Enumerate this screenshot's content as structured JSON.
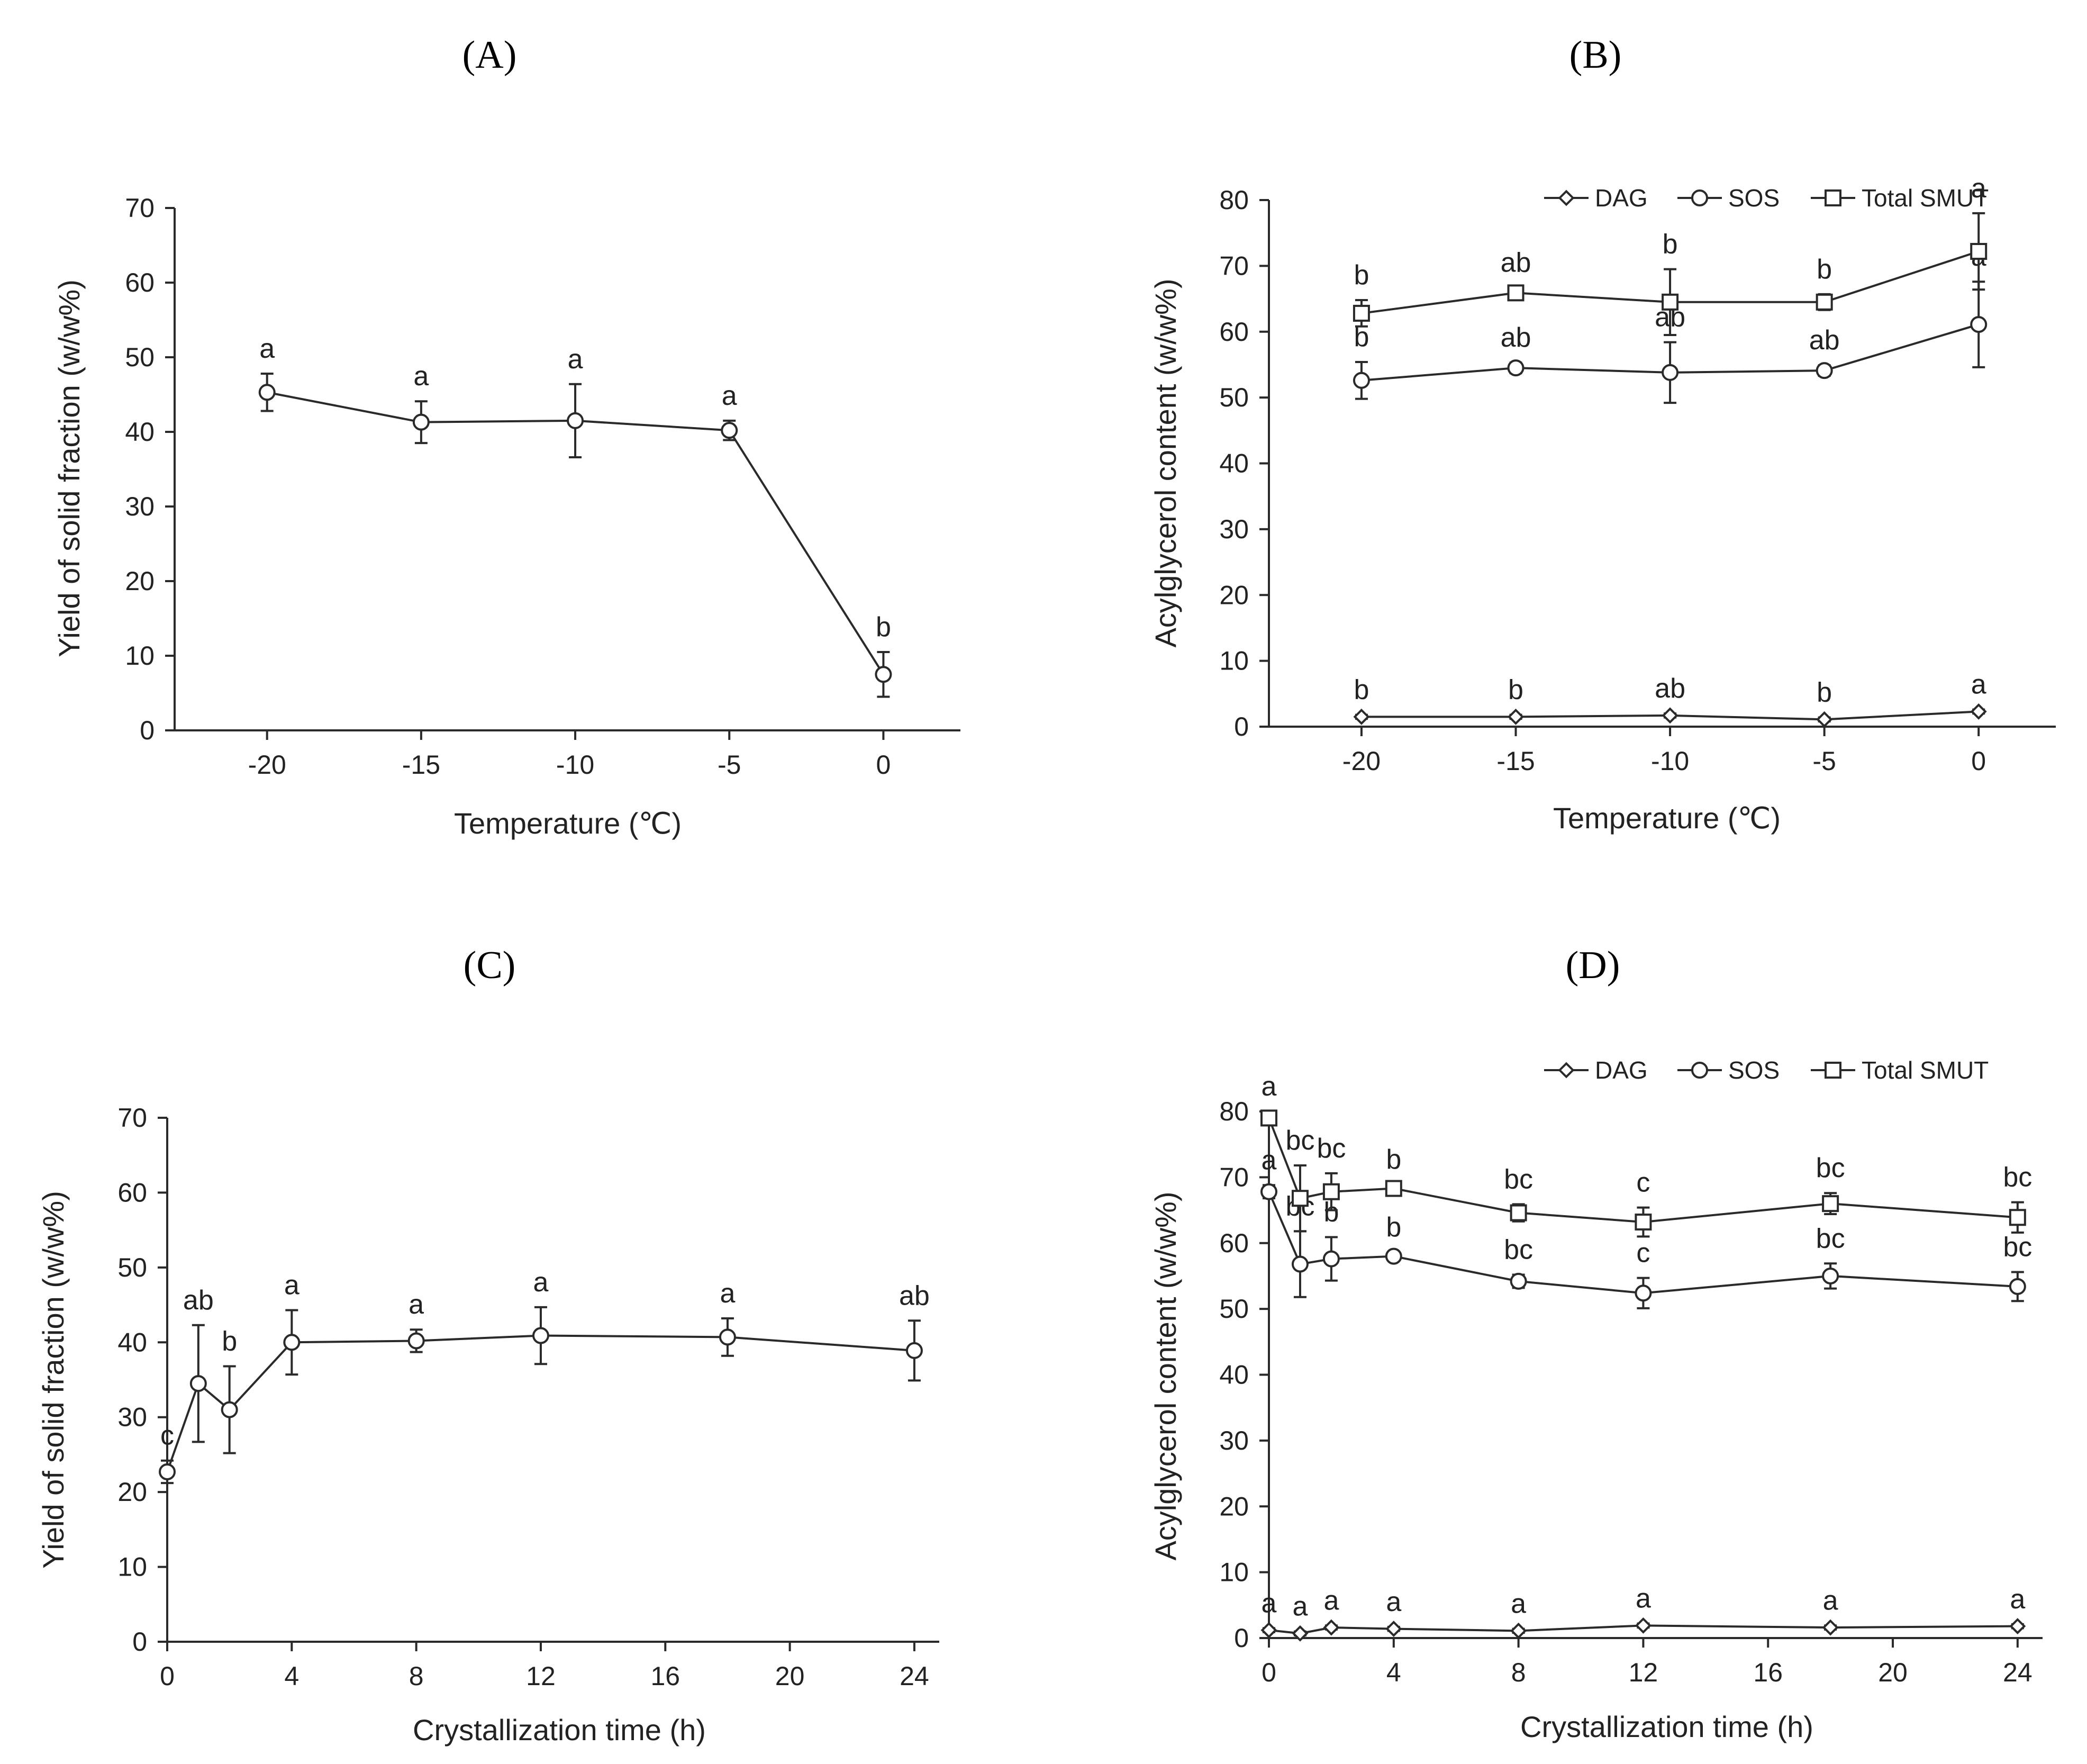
{
  "chart_data": [
    {
      "panel": "(A)",
      "type": "line",
      "xlabel": "Temperature (℃)",
      "ylabel": "Yield of solid fraction (w/w%)",
      "x": [
        -20,
        -15,
        -10,
        -5,
        0
      ],
      "xlim": [
        -23,
        2.5
      ],
      "xticks": [
        -20,
        -15,
        -10,
        -5,
        0
      ],
      "ylim": [
        0,
        70
      ],
      "yticks": [
        0,
        10,
        20,
        30,
        40,
        50,
        60,
        70
      ],
      "grid": false,
      "series": [
        {
          "name": "Yield",
          "marker": "circle",
          "values": [
            45.3,
            41.3,
            41.5,
            40.2,
            7.5
          ],
          "errors": [
            2.5,
            2.8,
            4.9,
            1.3,
            3.0
          ],
          "labels": [
            "a",
            "a",
            "a",
            "a",
            "b"
          ]
        }
      ]
    },
    {
      "panel": "(B)",
      "type": "line",
      "xlabel": "Temperature (℃)",
      "ylabel": "Acylglycerol content (w/w%)",
      "x": [
        -20,
        -15,
        -10,
        -5,
        0
      ],
      "xlim": [
        -23,
        2.5
      ],
      "xticks": [
        -20,
        -15,
        -10,
        -5,
        0
      ],
      "ylim": [
        0,
        80
      ],
      "yticks": [
        0,
        10,
        20,
        30,
        40,
        50,
        60,
        70,
        80
      ],
      "grid": false,
      "legend": "top-right",
      "series": [
        {
          "name": "DAG",
          "marker": "diamond",
          "values": [
            1.5,
            1.5,
            1.7,
            1.1,
            2.3
          ],
          "errors": [
            0.3,
            0.3,
            0.3,
            0.3,
            0.3
          ],
          "labels": [
            "b",
            "b",
            "ab",
            "b",
            "a"
          ]
        },
        {
          "name": "SOS",
          "marker": "circle",
          "values": [
            52.6,
            54.5,
            53.8,
            54.1,
            61.1
          ],
          "errors": [
            2.8,
            0.8,
            4.6,
            0.8,
            6.5
          ],
          "labels": [
            "b",
            "ab",
            "ab",
            "ab",
            "a"
          ]
        },
        {
          "name": "Total SMUT",
          "marker": "square",
          "values": [
            62.8,
            65.9,
            64.5,
            64.5,
            72.2
          ],
          "errors": [
            2.0,
            0.8,
            5.0,
            1.2,
            5.8
          ],
          "labels": [
            "b",
            "ab",
            "b",
            "b",
            "a"
          ]
        }
      ]
    },
    {
      "panel": "(C)",
      "type": "line",
      "xlabel": "Crystallization time (h)",
      "ylabel": "Yield of solid fraction (w/w%)",
      "x": [
        0,
        1,
        2,
        4,
        8,
        12,
        18,
        24
      ],
      "xlim": [
        0,
        24.8
      ],
      "xticks": [
        0,
        4,
        8,
        12,
        16,
        20,
        24
      ],
      "ylim": [
        0,
        70
      ],
      "yticks": [
        0,
        10,
        20,
        30,
        40,
        50,
        60,
        70
      ],
      "grid": false,
      "series": [
        {
          "name": "Yield",
          "marker": "circle",
          "values": [
            22.7,
            34.5,
            31.0,
            40.0,
            40.2,
            40.9,
            40.7,
            38.9
          ],
          "errors": [
            1.5,
            7.8,
            5.8,
            4.3,
            1.5,
            3.8,
            2.5,
            4.0
          ],
          "labels": [
            "c",
            "ab",
            "b",
            "a",
            "a",
            "a",
            "a",
            "ab"
          ]
        }
      ]
    },
    {
      "panel": "(D)",
      "type": "line",
      "xlabel": "Crystallization time (h)",
      "ylabel": "Acylglycerol content (w/w%)",
      "x": [
        0,
        1,
        2,
        4,
        8,
        12,
        18,
        24
      ],
      "xlim": [
        0,
        24.8
      ],
      "xticks": [
        0,
        4,
        8,
        12,
        16,
        20,
        24
      ],
      "ylim": [
        0,
        80
      ],
      "yticks": [
        0,
        10,
        20,
        30,
        40,
        50,
        60,
        70,
        80
      ],
      "grid": false,
      "legend": "top-right",
      "series": [
        {
          "name": "DAG",
          "marker": "diamond",
          "values": [
            1.2,
            0.7,
            1.6,
            1.4,
            1.1,
            1.9,
            1.6,
            1.8
          ],
          "errors": [
            0.3,
            0.3,
            0.3,
            0.3,
            0.3,
            0.3,
            0.3,
            0.3
          ],
          "labels": [
            "a",
            "a",
            "a",
            "a",
            "a",
            "a",
            "a",
            "a"
          ]
        },
        {
          "name": "SOS",
          "marker": "circle",
          "values": [
            67.8,
            56.8,
            57.6,
            58.0,
            54.2,
            52.4,
            55.0,
            53.4
          ],
          "errors": [
            1.0,
            5.0,
            3.3,
            0.6,
            1.0,
            2.3,
            1.9,
            2.2
          ],
          "labels": [
            "a",
            "bc",
            "b",
            "b",
            "bc",
            "c",
            "bc",
            "bc"
          ]
        },
        {
          "name": "Total SMUT",
          "marker": "square",
          "values": [
            79.0,
            66.8,
            67.8,
            68.3,
            64.6,
            63.2,
            66.0,
            63.9
          ],
          "errors": [
            1.0,
            5.0,
            2.8,
            0.6,
            1.3,
            2.2,
            1.6,
            2.3
          ],
          "labels": [
            "a",
            "bc",
            "bc",
            "b",
            "bc",
            "c",
            "bc",
            "bc"
          ]
        }
      ]
    }
  ]
}
